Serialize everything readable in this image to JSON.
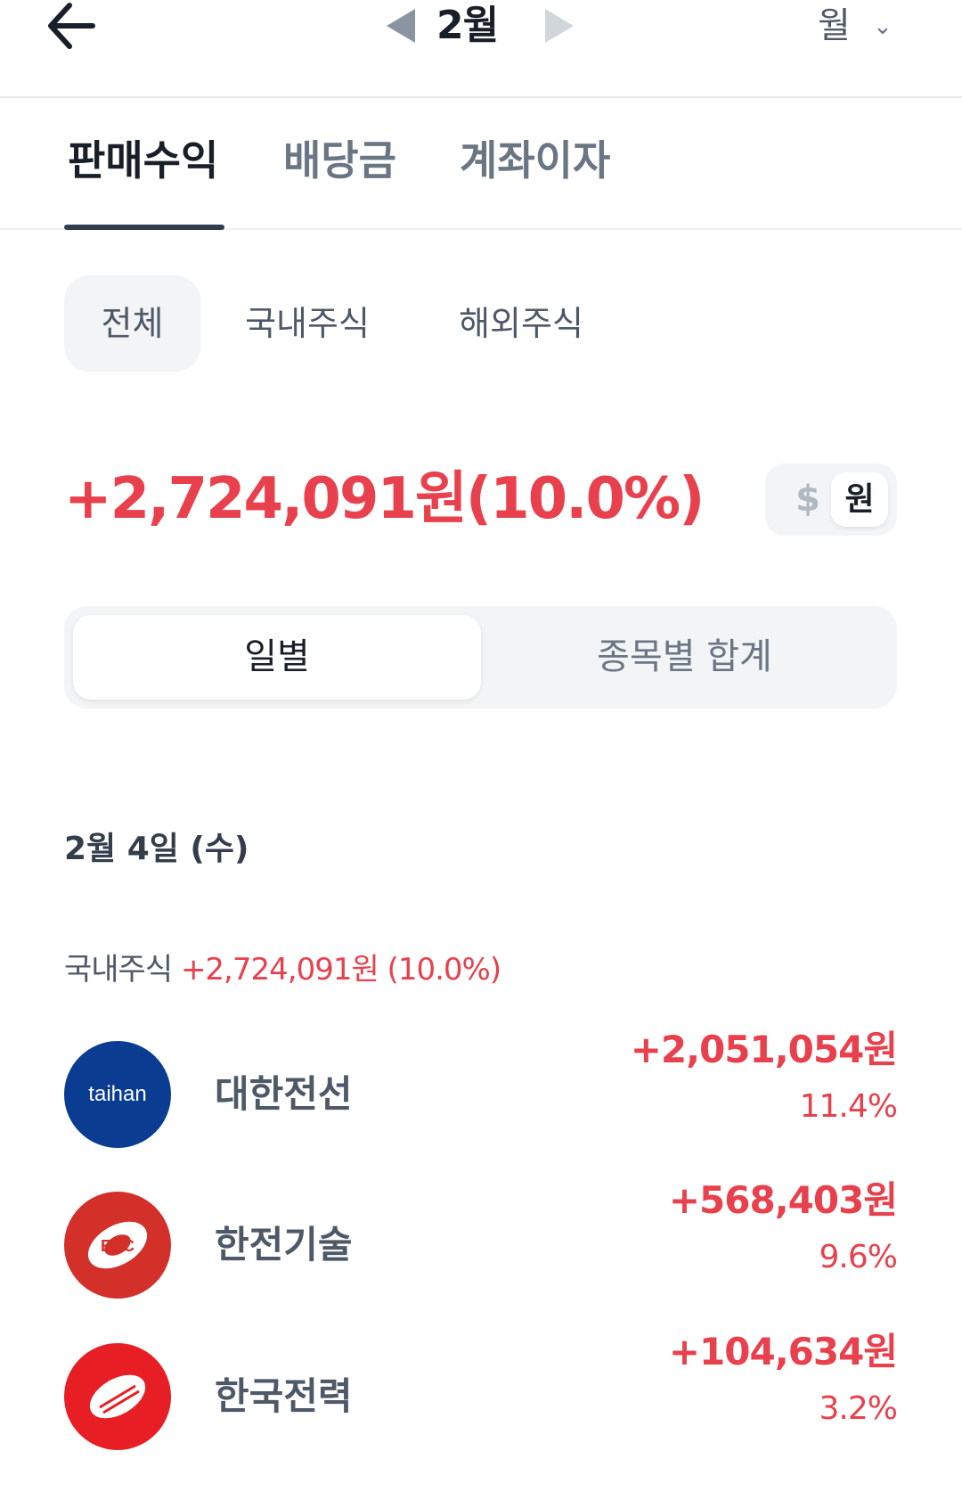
{
  "header": {
    "month": "2월",
    "period": "월"
  },
  "tabs": [
    {
      "label": "판매수익"
    },
    {
      "label": "배당금"
    },
    {
      "label": "계좌이자"
    }
  ],
  "chips": [
    {
      "label": "전체"
    },
    {
      "label": "국내주식"
    },
    {
      "label": "해외주식"
    }
  ],
  "total": "+2,724,091원(10.0%)",
  "currency": {
    "usd": "$",
    "krw": "원"
  },
  "segments": [
    {
      "label": "일별"
    },
    {
      "label": "종목별 합계"
    }
  ],
  "date": "2월 4일 (수)",
  "summary": {
    "label": "국내주식",
    "value": "+2,724,091원 (10.0%)"
  },
  "stocks": [
    {
      "name": "대한전선",
      "amount": "+2,051,054원",
      "percent": "11.4%",
      "logo_text": "taihan",
      "logo_color": "#0a3d91"
    },
    {
      "name": "한전기술",
      "amount": "+568,403원",
      "percent": "9.6%",
      "logo_text": "E&C",
      "logo_color": "#d3302a"
    },
    {
      "name": "한국전력",
      "amount": "+104,634원",
      "percent": "3.2%",
      "logo_text": "",
      "logo_color": "#e81e25"
    }
  ],
  "colors": {
    "profit": "#e8414d",
    "text": "#191f28",
    "subtext": "#4e5968"
  }
}
